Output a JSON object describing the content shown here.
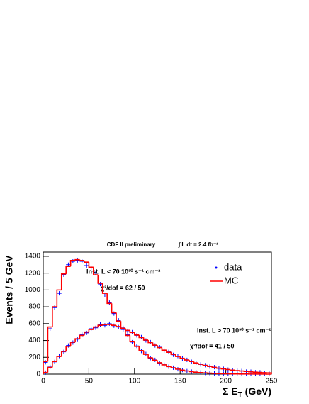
{
  "chart_data": {
    "type": "histogram",
    "title": "CDF II preliminary",
    "luminosity": "∫ L dt = 2.4 fb⁻¹",
    "y_label": "Events / 5 GeV",
    "x_label": [
      "Σ E",
      "T",
      " (GeV)"
    ],
    "bins": [
      0,
      5,
      10,
      15,
      20,
      25,
      30,
      35,
      40,
      45,
      50,
      55,
      60,
      65,
      70,
      75,
      80,
      85,
      90,
      95,
      100,
      105,
      110,
      115,
      120,
      125,
      130,
      135,
      140,
      145,
      150,
      155,
      160,
      165,
      170,
      175,
      180,
      185,
      190,
      195,
      200,
      205,
      210,
      215,
      220,
      225,
      230,
      235,
      240,
      245,
      250
    ],
    "xlim": [
      0,
      250
    ],
    "xticks": [
      0,
      50,
      100,
      150,
      200,
      250
    ],
    "ylim": [
      0,
      1450
    ],
    "yticks": [
      0,
      200,
      400,
      600,
      800,
      1000,
      1200,
      1400
    ],
    "legend": "upper right",
    "annotations": [
      {
        "text": "Inst. L < 70 10³⁰ s⁻¹ cm⁻²",
        "fit": "χ²/dof = 62 / 50"
      },
      {
        "text": "Inst. L > 70 10³⁰ s⁻¹ cm⁻²",
        "fit": "χ²/dof = 41 / 50"
      }
    ],
    "series": [
      {
        "name": "data",
        "color": "#0000ff",
        "marker": "cross",
        "values": [
          [
            140,
            540,
            790,
            960,
            1180,
            1300,
            1340,
            1350,
            1340,
            1290,
            1260,
            1200,
            1070,
            940,
            850,
            720,
            640,
            530,
            470,
            380,
            335,
            275,
            240,
            190,
            170,
            130,
            112,
            88,
            77,
            58,
            49,
            37,
            31,
            23,
            20,
            14,
            12,
            9,
            7,
            6,
            5,
            4,
            3,
            2,
            2,
            1,
            1,
            1,
            1,
            0
          ],
          [
            18,
            85,
            145,
            215,
            265,
            340,
            375,
            415,
            470,
            490,
            540,
            550,
            590,
            580,
            600,
            575,
            560,
            550,
            515,
            500,
            460,
            440,
            400,
            380,
            340,
            320,
            280,
            265,
            230,
            215,
            185,
            170,
            148,
            135,
            115,
            106,
            90,
            83,
            70,
            64,
            54,
            49,
            41,
            38,
            31,
            29,
            23,
            22,
            17,
            16
          ]
        ]
      },
      {
        "name": "MC",
        "color": "#ff0000",
        "marker": "step",
        "values": [
          [
            150,
            560,
            800,
            1000,
            1190,
            1280,
            1350,
            1360,
            1350,
            1330,
            1270,
            1180,
            1080,
            960,
            840,
            730,
            630,
            540,
            460,
            390,
            330,
            280,
            235,
            195,
            165,
            135,
            110,
            90,
            75,
            60,
            48,
            38,
            30,
            24,
            19,
            15,
            12,
            9,
            7,
            6,
            5,
            4,
            3,
            2,
            2,
            1,
            1,
            1,
            1,
            0
          ],
          [
            20,
            80,
            150,
            210,
            270,
            330,
            380,
            420,
            460,
            500,
            530,
            560,
            580,
            590,
            590,
            580,
            565,
            545,
            520,
            495,
            465,
            435,
            405,
            375,
            345,
            315,
            285,
            260,
            235,
            210,
            188,
            168,
            150,
            133,
            118,
            104,
            92,
            81,
            71,
            63,
            55,
            48,
            42,
            37,
            32,
            28,
            24,
            21,
            18,
            15
          ]
        ]
      }
    ]
  }
}
